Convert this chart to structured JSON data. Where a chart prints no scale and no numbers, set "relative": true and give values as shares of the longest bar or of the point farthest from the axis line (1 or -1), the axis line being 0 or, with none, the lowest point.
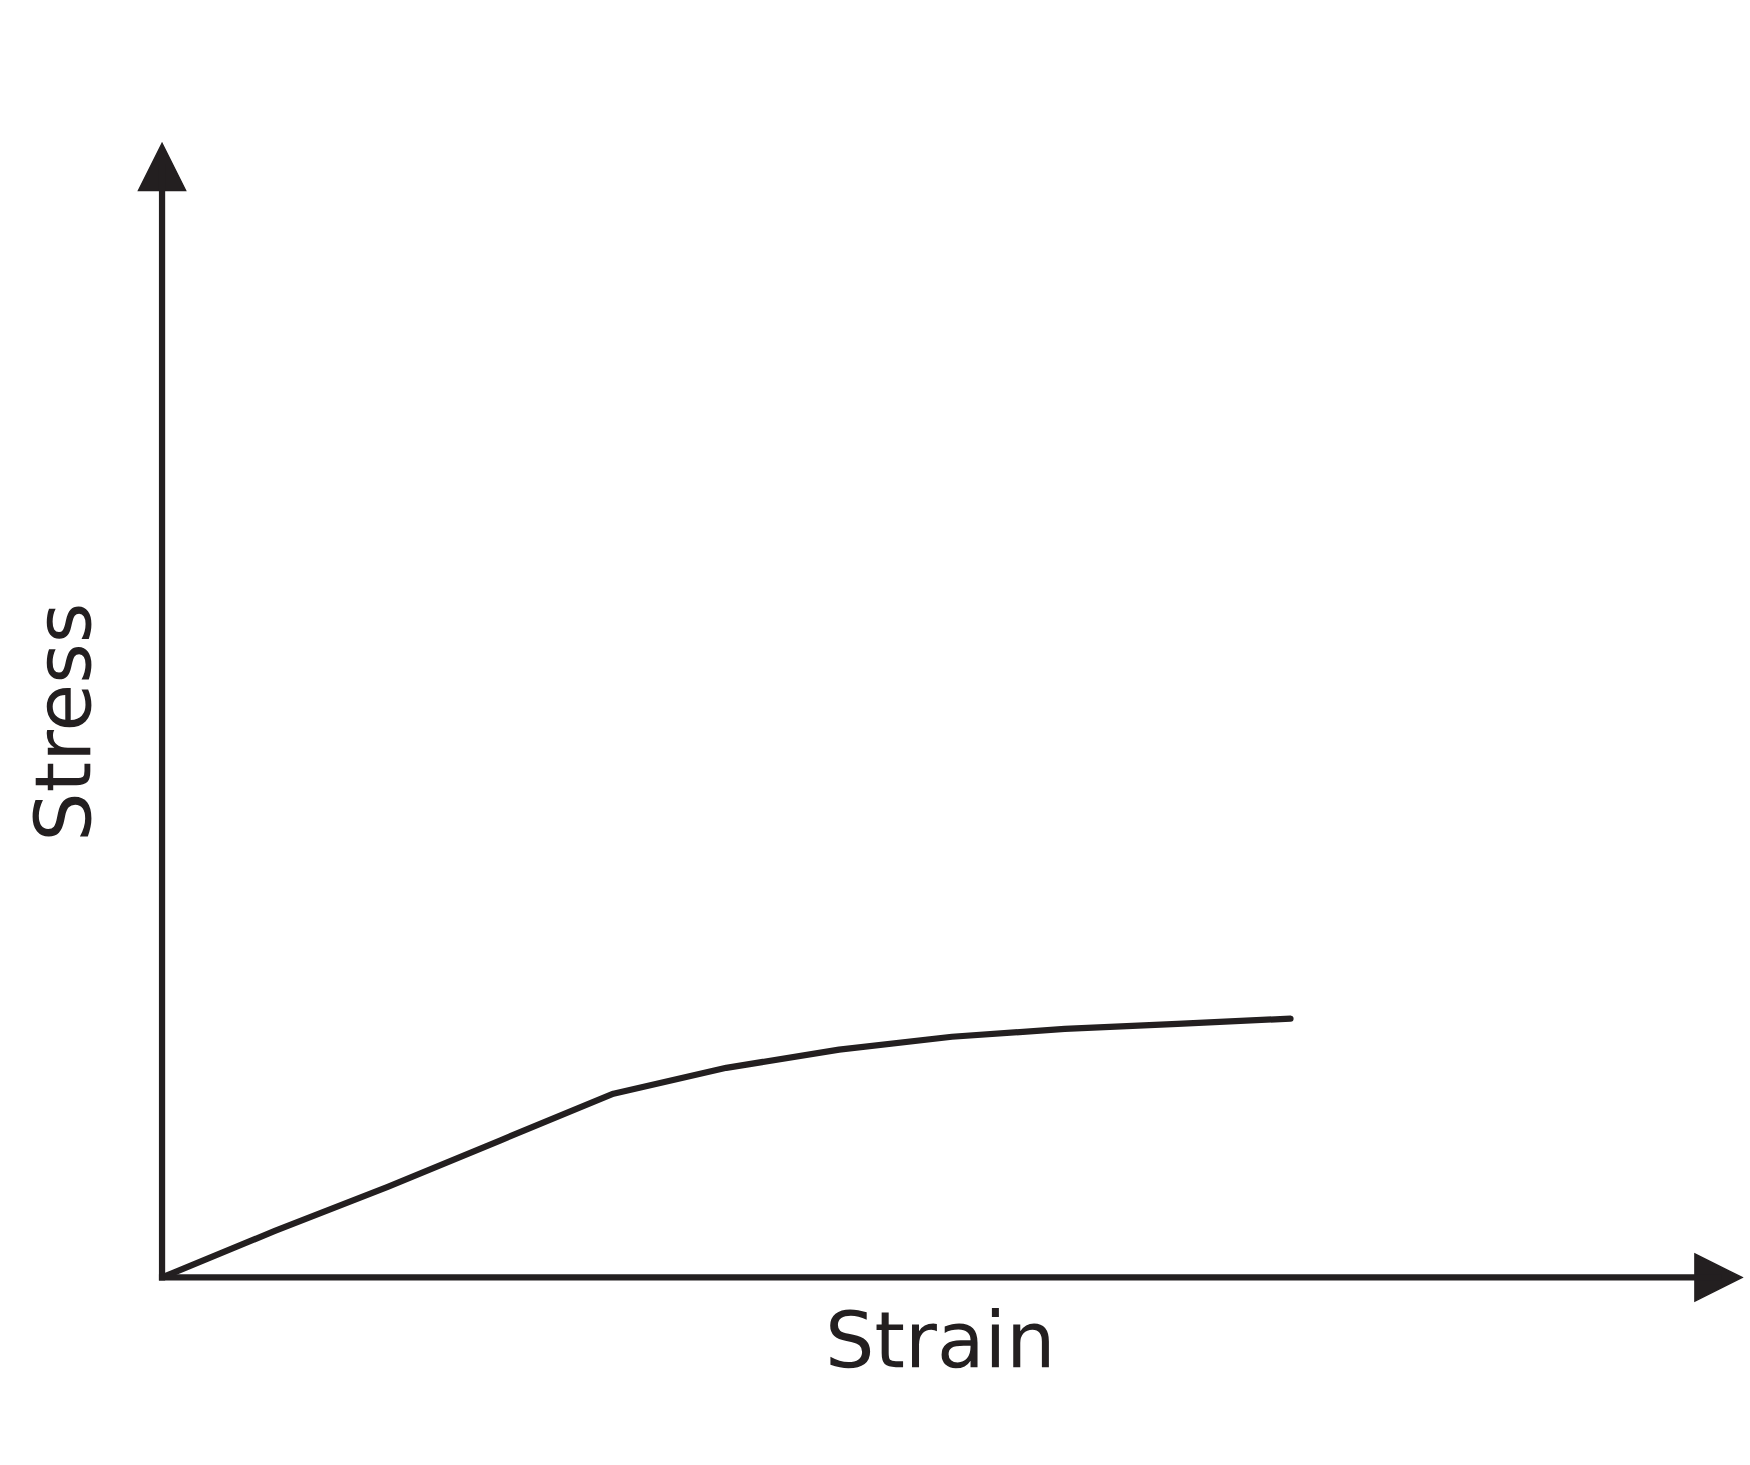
{
  "chart_data": {
    "type": "line",
    "xlabel": "Strain",
    "ylabel": "Stress",
    "relative": true,
    "tick_labels": false,
    "line_style": "solid",
    "categories": [
      null,
      null,
      null,
      null,
      null,
      null,
      null,
      null,
      null,
      null,
      null
    ],
    "series": [
      {
        "color": "#231f20",
        "values": [
          0,
          0.18,
          0.35,
          0.53,
          0.71,
          0.81,
          0.88,
          0.93,
          0.96,
          0.98,
          1
        ]
      }
    ]
  }
}
